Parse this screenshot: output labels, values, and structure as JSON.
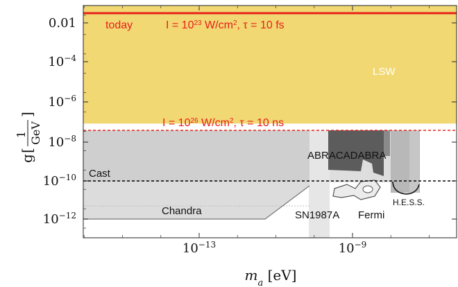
{
  "chart_data": {
    "type": "area",
    "title": "",
    "xlabel": "m",
    "xlabel_sub": "a",
    "xlabel_unit": "[eV]",
    "ylabel": "g",
    "ylabel_frac_num": "1",
    "ylabel_frac_den": "GeV",
    "x_scale": "log",
    "y_scale": "log",
    "xlim_log10": [
      -17,
      -6
    ],
    "ylim_log10": [
      -13.5,
      -1.5
    ],
    "x_ticks": [
      {
        "log": -13,
        "base": "10",
        "exp": "−13"
      },
      {
        "log": -9,
        "base": "10",
        "exp": "−9"
      }
    ],
    "y_ticks": [
      {
        "log": -2,
        "text": "0.01"
      },
      {
        "log": -4,
        "base": "10",
        "exp": "−4"
      },
      {
        "log": -6,
        "base": "10",
        "exp": "−6"
      },
      {
        "log": -8,
        "base": "10",
        "exp": "−8"
      },
      {
        "log": -10,
        "base": "10",
        "exp": "−10"
      },
      {
        "log": -12,
        "base": "10",
        "exp": "−12"
      }
    ],
    "colors": {
      "lsw_fill": "#f1d873",
      "red_line": "#e8201a",
      "grey_region": "#cfcfcf",
      "light_region": "#e6e6e6",
      "mid_region": "#a8a8a8",
      "dark_region": "#5c5c5c",
      "cast_line": "#000000"
    },
    "lines": {
      "today": {
        "log_g": -1.7
      },
      "projected": {
        "log_g": -7.6
      },
      "cast": {
        "log_g": -10.0
      }
    },
    "regions": [
      {
        "key": "lsw",
        "name": "LSW",
        "log_m": [
          -17,
          -6
        ],
        "log_g": [
          -7.6,
          -1.5
        ]
      },
      {
        "key": "grey_main",
        "log_m": [
          -17,
          -10.35
        ],
        "log_g": [
          -12.2,
          -7.6
        ]
      },
      {
        "key": "light_block",
        "log_m": [
          -10.35,
          -9.55
        ],
        "log_g": [
          -13.5,
          -7.6
        ]
      },
      {
        "key": "mid_block",
        "log_m": [
          -8.2,
          -6.85
        ],
        "log_g": [
          -10.5,
          -7.6
        ]
      },
      {
        "key": "cast_band",
        "log_m": [
          -17,
          -10.35
        ],
        "log_g": [
          -10.0,
          -7.6
        ]
      }
    ],
    "texts": {
      "today": "today",
      "intensity_today": {
        "base": "I = 10",
        "exp": "23",
        "rest": " W/cm",
        "exp2": "2",
        "tail": ", τ = 10 fs"
      },
      "intensity_future": {
        "base": "I = 10",
        "exp": "26",
        "rest": " W/cm",
        "exp2": "2",
        "tail": ", τ = 10 ns"
      },
      "lsw": "LSW",
      "abracadabra": "ABRACADABRA",
      "cast": "Cast",
      "chandra": "Chandra",
      "sn1987a": "SN1987A",
      "fermi": "Fermi",
      "hess": "H.E.S.S."
    }
  }
}
